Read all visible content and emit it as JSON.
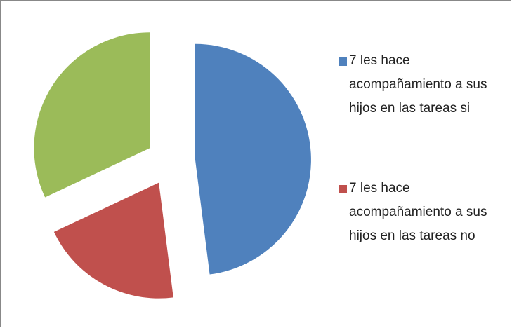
{
  "chart_data": {
    "type": "pie",
    "categories": [
      "7 les hace acompañamiento a sus hijos en las tareas si",
      "7 les hace acompañamiento a sus hijos en las tareas no",
      null
    ],
    "values": [
      48,
      20,
      32
    ],
    "colors": [
      "#4f81bd",
      "#c0504d",
      "#9bbb59"
    ],
    "exploded": true,
    "legend": "right"
  }
}
